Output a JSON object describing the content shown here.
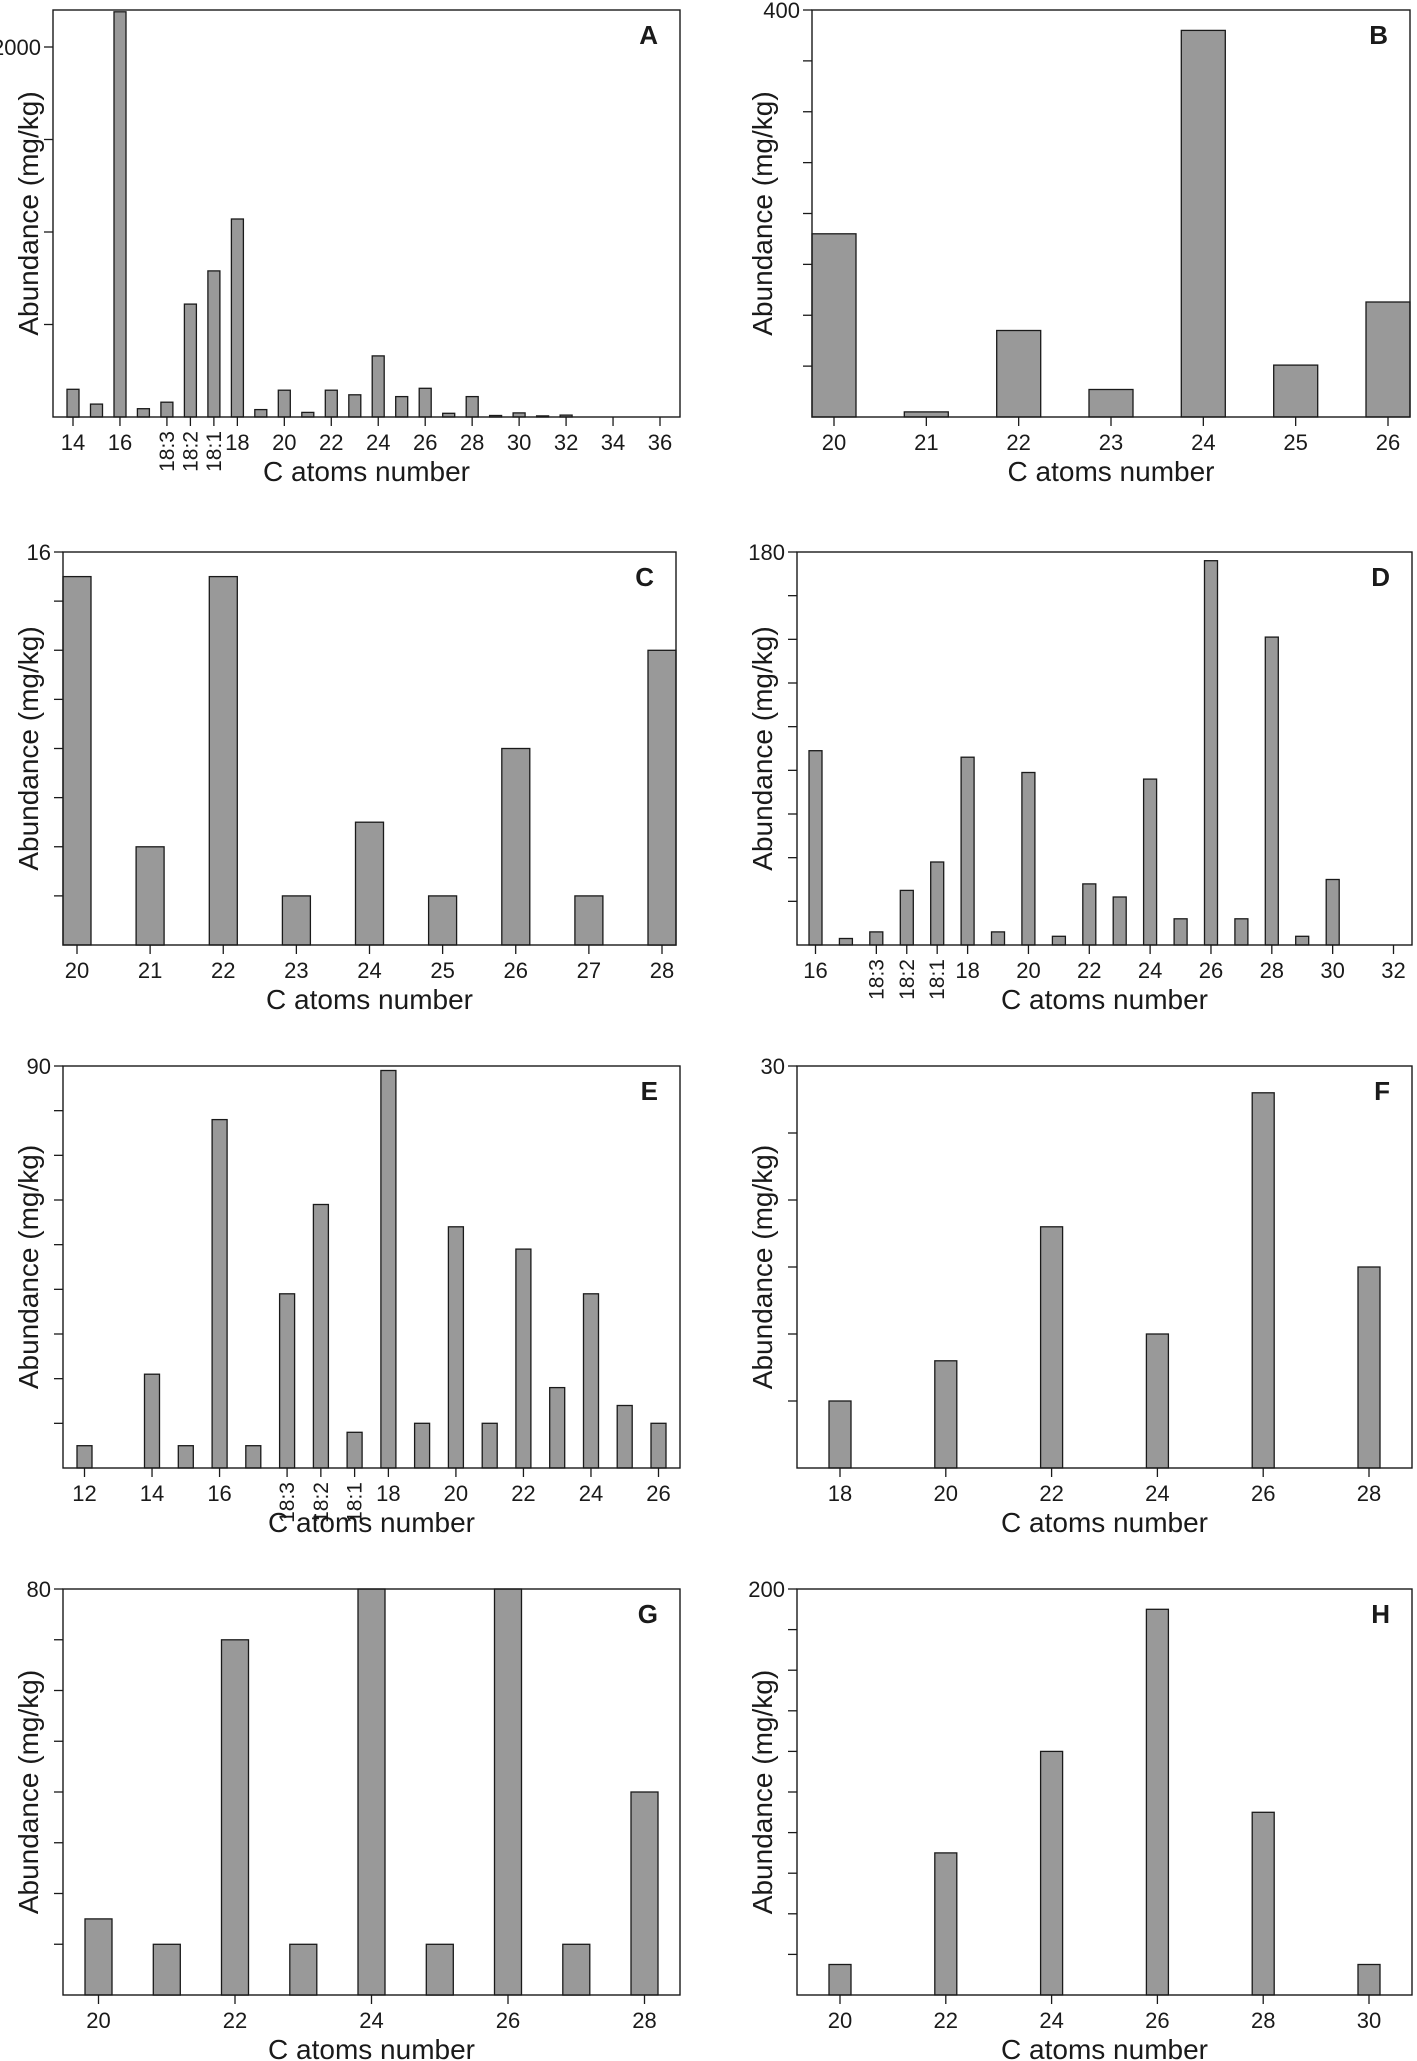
{
  "figure": {
    "panels": [
      "A",
      "B",
      "C",
      "D",
      "E",
      "F",
      "G",
      "H"
    ]
  },
  "chart_data": [
    {
      "panel": "A",
      "type": "bar",
      "xlabel": "C atoms number",
      "ylabel": "Abundance (mg/kg)",
      "ylim": [
        0,
        2200
      ],
      "ytick_labels": [
        "2000"
      ],
      "ytick_label_values": [
        2000
      ],
      "minor_ytick_values": [
        500,
        1000,
        1500
      ],
      "categories": [
        "14",
        "15",
        "16",
        "17",
        "18:3",
        "18:2",
        "18:1",
        "18",
        "19",
        "20",
        "21",
        "22",
        "23",
        "24",
        "25",
        "26",
        "27",
        "28",
        "29",
        "30",
        "31",
        "32",
        "33",
        "34",
        "35",
        "36"
      ],
      "x_tick_labels": [
        [
          "14",
          "14"
        ],
        [
          "16",
          "16"
        ],
        [
          "18:3",
          "18:3"
        ],
        [
          "18:2",
          "18:2"
        ],
        [
          "18:1",
          "18:1"
        ],
        [
          "18",
          "18"
        ],
        [
          "20",
          "20"
        ],
        [
          "22",
          "22"
        ],
        [
          "24",
          "24"
        ],
        [
          "26",
          "26"
        ],
        [
          "28",
          "28"
        ],
        [
          "30",
          "30"
        ],
        [
          "32",
          "32"
        ],
        [
          "34",
          "34"
        ],
        [
          "36",
          "36"
        ]
      ],
      "rotated_tick_labels": [
        "18:3",
        "18:2",
        "18:1"
      ],
      "values": [
        150,
        70,
        2190,
        45,
        80,
        610,
        790,
        1070,
        40,
        145,
        25,
        145,
        120,
        330,
        110,
        155,
        20,
        110,
        8,
        22,
        6,
        10,
        0,
        0,
        0,
        0
      ]
    },
    {
      "panel": "B",
      "type": "bar",
      "xlabel": "C atoms number",
      "ylabel": "Abundance (mg/kg)",
      "ylim": [
        0,
        400
      ],
      "ytick_labels": [
        "400"
      ],
      "ytick_label_values": [
        400
      ],
      "minor_ytick_values": [
        50,
        100,
        150,
        200,
        250,
        300,
        350
      ],
      "categories": [
        "20",
        "21",
        "22",
        "23",
        "24",
        "25",
        "26"
      ],
      "x_tick_labels": [
        [
          "20",
          "20"
        ],
        [
          "21",
          "21"
        ],
        [
          "22",
          "22"
        ],
        [
          "23",
          "23"
        ],
        [
          "24",
          "24"
        ],
        [
          "25",
          "25"
        ],
        [
          "26",
          "26"
        ]
      ],
      "rotated_tick_labels": [],
      "values": [
        180,
        5,
        85,
        27,
        380,
        51,
        113
      ]
    },
    {
      "panel": "C",
      "type": "bar",
      "xlabel": "C atoms number",
      "ylabel": "Abundance (mg/kg)",
      "ylim": [
        0,
        16
      ],
      "ytick_labels": [
        "16"
      ],
      "ytick_label_values": [
        16
      ],
      "minor_ytick_values": [
        2,
        4,
        6,
        8,
        10,
        12,
        14
      ],
      "categories": [
        "20",
        "21",
        "22",
        "23",
        "24",
        "25",
        "26",
        "27",
        "28"
      ],
      "x_tick_labels": [
        [
          "20",
          "20"
        ],
        [
          "21",
          "21"
        ],
        [
          "22",
          "22"
        ],
        [
          "23",
          "23"
        ],
        [
          "24",
          "24"
        ],
        [
          "25",
          "25"
        ],
        [
          "26",
          "26"
        ],
        [
          "27",
          "27"
        ],
        [
          "28",
          "28"
        ]
      ],
      "rotated_tick_labels": [],
      "values": [
        15,
        4,
        15,
        2,
        5,
        2,
        8,
        2,
        12
      ]
    },
    {
      "panel": "D",
      "type": "bar",
      "xlabel": "C atoms number",
      "ylabel": "Abundance (mg/kg)",
      "ylim": [
        0,
        180
      ],
      "ytick_labels": [
        "180"
      ],
      "ytick_label_values": [
        180
      ],
      "minor_ytick_values": [
        20,
        40,
        60,
        80,
        100,
        120,
        140,
        160
      ],
      "categories": [
        "16",
        "17",
        "18:3",
        "18:2",
        "18:1",
        "18",
        "19",
        "20",
        "21",
        "22",
        "23",
        "24",
        "25",
        "26",
        "27",
        "28",
        "29",
        "30",
        "31",
        "32"
      ],
      "x_tick_labels": [
        [
          "16",
          "16"
        ],
        [
          "18:3",
          "18:3"
        ],
        [
          "18:2",
          "18:2"
        ],
        [
          "18:1",
          "18:1"
        ],
        [
          "18",
          "18"
        ],
        [
          "20",
          "20"
        ],
        [
          "22",
          "22"
        ],
        [
          "24",
          "24"
        ],
        [
          "26",
          "26"
        ],
        [
          "28",
          "28"
        ],
        [
          "30",
          "30"
        ],
        [
          "32",
          "32"
        ]
      ],
      "rotated_tick_labels": [
        "18:3",
        "18:2",
        "18:1"
      ],
      "values": [
        89,
        3,
        6,
        25,
        38,
        86,
        6,
        79,
        4,
        28,
        22,
        76,
        12,
        176,
        12,
        141,
        4,
        30,
        0,
        0
      ]
    },
    {
      "panel": "E",
      "type": "bar",
      "xlabel": "C atoms number",
      "ylabel": "Abundance (mg/kg)",
      "ylim": [
        0,
        90
      ],
      "ytick_labels": [
        "90"
      ],
      "ytick_label_values": [
        90
      ],
      "minor_ytick_values": [
        10,
        20,
        30,
        40,
        50,
        60,
        70,
        80
      ],
      "categories": [
        "12",
        "13",
        "14",
        "15",
        "16",
        "17",
        "18:3",
        "18:2",
        "18:1",
        "18",
        "19",
        "20",
        "21",
        "22",
        "23",
        "24",
        "25",
        "26"
      ],
      "x_tick_labels": [
        [
          "12",
          "12"
        ],
        [
          "14",
          "14"
        ],
        [
          "16",
          "16"
        ],
        [
          "18:3",
          "18:3"
        ],
        [
          "18:2",
          "18:2"
        ],
        [
          "18:1",
          "18:1"
        ],
        [
          "18",
          "18"
        ],
        [
          "20",
          "20"
        ],
        [
          "22",
          "22"
        ],
        [
          "24",
          "24"
        ],
        [
          "26",
          "26"
        ]
      ],
      "rotated_tick_labels": [
        "18:3",
        "18:2",
        "18:1"
      ],
      "values": [
        5,
        0,
        21,
        5,
        78,
        5,
        39,
        59,
        8,
        89,
        10,
        54,
        10,
        49,
        18,
        39,
        14,
        10
      ]
    },
    {
      "panel": "F",
      "type": "bar",
      "xlabel": "C atoms number",
      "ylabel": "Abundance (mg/kg)",
      "ylim": [
        0,
        30
      ],
      "ytick_labels": [
        "30"
      ],
      "ytick_label_values": [
        30
      ],
      "minor_ytick_values": [
        5,
        10,
        15,
        20,
        25
      ],
      "categories": [
        "18",
        "19",
        "20",
        "21",
        "22",
        "23",
        "24",
        "25",
        "26",
        "27",
        "28"
      ],
      "x_tick_labels": [
        [
          "18",
          "18"
        ],
        [
          "20",
          "20"
        ],
        [
          "22",
          "22"
        ],
        [
          "24",
          "24"
        ],
        [
          "26",
          "26"
        ],
        [
          "28",
          "28"
        ]
      ],
      "rotated_tick_labels": [],
      "values": [
        5,
        0,
        8,
        0,
        18,
        0,
        10,
        0,
        28,
        0,
        15
      ]
    },
    {
      "panel": "G",
      "type": "bar",
      "xlabel": "C atoms number",
      "ylabel": "Abundance (mg/kg)",
      "ylim": [
        0,
        80
      ],
      "ytick_labels": [
        "80"
      ],
      "ytick_label_values": [
        80
      ],
      "minor_ytick_values": [
        10,
        20,
        30,
        40,
        50,
        60,
        70
      ],
      "categories": [
        "20",
        "21",
        "22",
        "23",
        "24",
        "25",
        "26",
        "27",
        "28"
      ],
      "x_tick_labels": [
        [
          "20",
          "20"
        ],
        [
          "22",
          "22"
        ],
        [
          "24",
          "24"
        ],
        [
          "26",
          "26"
        ],
        [
          "28",
          "28"
        ]
      ],
      "rotated_tick_labels": [],
      "values": [
        15,
        10,
        70,
        10,
        80,
        10,
        80,
        10,
        40
      ]
    },
    {
      "panel": "H",
      "type": "bar",
      "xlabel": "C atoms number",
      "ylabel": "Abundance (mg/kg)",
      "ylim": [
        0,
        200
      ],
      "ytick_labels": [
        "200"
      ],
      "ytick_label_values": [
        200
      ],
      "minor_ytick_values": [
        20,
        40,
        60,
        80,
        100,
        120,
        140,
        160,
        180
      ],
      "categories": [
        "20",
        "21",
        "22",
        "23",
        "24",
        "25",
        "26",
        "27",
        "28",
        "29",
        "30"
      ],
      "x_tick_labels": [
        [
          "20",
          "20"
        ],
        [
          "22",
          "22"
        ],
        [
          "24",
          "24"
        ],
        [
          "26",
          "26"
        ],
        [
          "28",
          "28"
        ],
        [
          "30",
          "30"
        ]
      ],
      "rotated_tick_labels": [],
      "values": [
        15,
        0,
        70,
        0,
        120,
        0,
        190,
        0,
        90,
        0,
        15
      ]
    }
  ]
}
